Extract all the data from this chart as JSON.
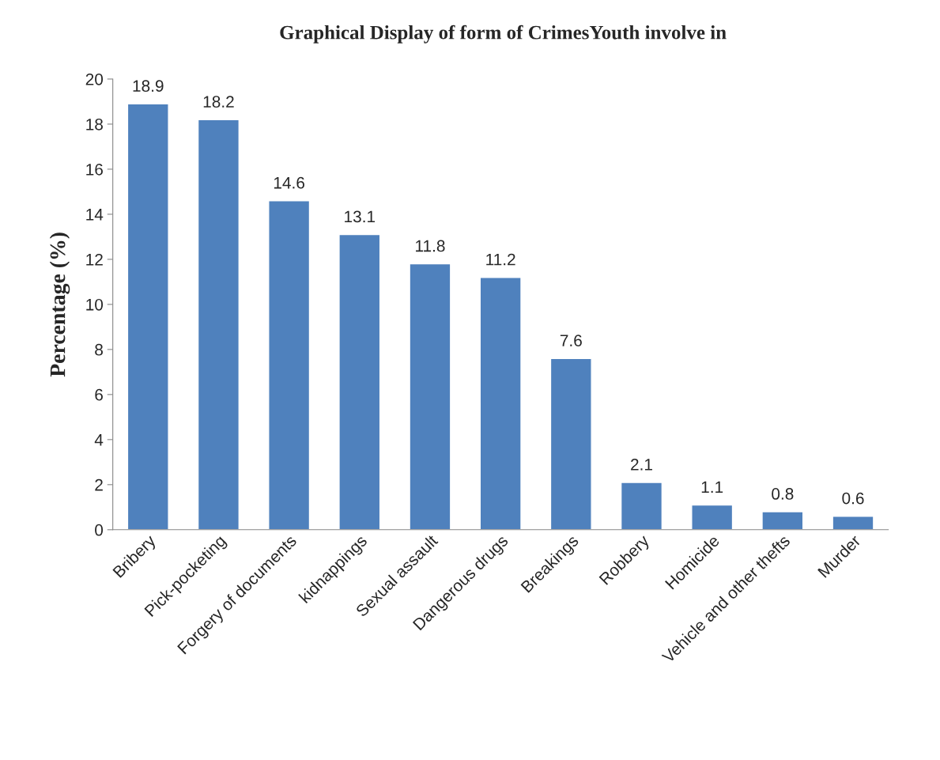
{
  "chart_data": {
    "type": "bar",
    "title": "Graphical Display of form of CrimesYouth involve in",
    "ylabel": "Percentage (%)",
    "categories": [
      "Bribery",
      "Pick-pocketing",
      "Forgery of documents",
      "kidnappings",
      "Sexual assault",
      "Dangerous drugs",
      "Breakings",
      "Robbery",
      "Homicide",
      "Vehicle and other thefts",
      "Murder"
    ],
    "values": [
      18.9,
      18.2,
      14.6,
      13.1,
      11.8,
      11.2,
      7.6,
      2.1,
      1.1,
      0.8,
      0.6
    ],
    "color": "#4f81bd",
    "ylim": [
      0,
      20
    ],
    "yticks": [
      0,
      2,
      4,
      6,
      8,
      10,
      12,
      14,
      16,
      18,
      20
    ],
    "grid": false,
    "data_labels": true
  }
}
